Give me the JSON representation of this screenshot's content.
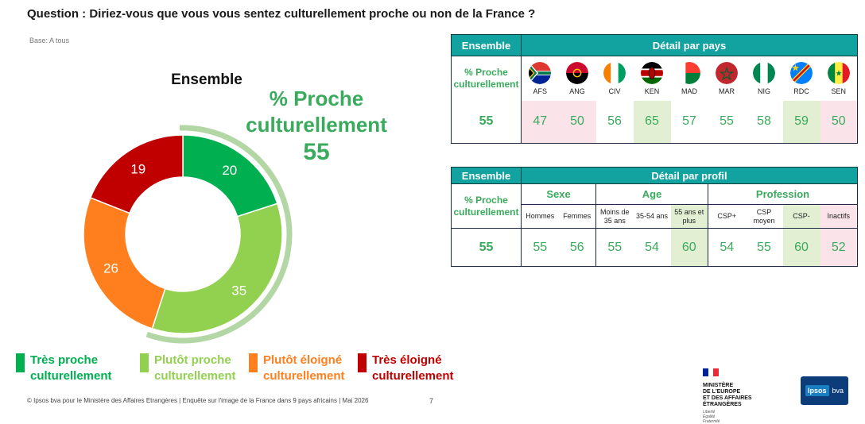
{
  "question": "Question : Diriez-vous que vous vous sentez culturellement proche ou non de la France ?",
  "base": "Base: A tous",
  "chart_data": {
    "type": "pie",
    "donut": true,
    "title": "Ensemble",
    "categories": [
      "Très proche culturellement",
      "Plutôt proche culturellement",
      "Plutôt éloigné culturellement",
      "Très éloigné culturellement"
    ],
    "values": [
      20,
      35,
      26,
      19
    ],
    "colors": [
      "#00b050",
      "#92d050",
      "#ff7f1e",
      "#c00000"
    ],
    "highlight_label": "% Proche culturellement",
    "highlight_value": "55"
  },
  "highlight": {
    "label": "% Proche culturellement",
    "value": "55"
  },
  "legend": [
    {
      "line1": "Très proche",
      "line2": "culturellement",
      "color": "#00b050"
    },
    {
      "line1": "Plutôt proche",
      "line2": "culturellement",
      "color": "#92d050"
    },
    {
      "line1": "Plutôt éloigné",
      "line2": "culturellement",
      "color": "#ff7f1e"
    },
    {
      "line1": "Très éloigné",
      "line2": "culturellement",
      "color": "#c00000"
    }
  ],
  "table_pays": {
    "ensemble_header": "Ensemble",
    "detail_header": "Détail par pays",
    "row_label_1": "% Proche",
    "row_label_2": "culturellement",
    "ensemble_value": "55",
    "countries": [
      {
        "code": "AFS",
        "value": "47",
        "bg": "pink",
        "flag": "south-africa-flag-icon"
      },
      {
        "code": "ANG",
        "value": "50",
        "bg": "pink",
        "flag": "angola-flag-icon"
      },
      {
        "code": "CIV",
        "value": "56",
        "bg": "none",
        "flag": "cote-divoire-flag-icon"
      },
      {
        "code": "KEN",
        "value": "65",
        "bg": "green",
        "flag": "kenya-flag-icon"
      },
      {
        "code": "MAD",
        "value": "57",
        "bg": "none",
        "flag": "madagascar-flag-icon"
      },
      {
        "code": "MAR",
        "value": "55",
        "bg": "none",
        "flag": "morocco-flag-icon"
      },
      {
        "code": "NIG",
        "value": "58",
        "bg": "none",
        "flag": "nigeria-flag-icon"
      },
      {
        "code": "RDC",
        "value": "59",
        "bg": "green",
        "flag": "drc-flag-icon"
      },
      {
        "code": "SEN",
        "value": "50",
        "bg": "pink",
        "flag": "senegal-flag-icon"
      }
    ]
  },
  "table_profil": {
    "ensemble_header": "Ensemble",
    "detail_header": "Détail par profil",
    "row_label_1": "% Proche",
    "row_label_2": "culturellement",
    "ensemble_value": "55",
    "groups": {
      "sexe": "Sexe",
      "age": "Age",
      "profession": "Profession"
    },
    "cols": [
      {
        "l1": "Hommes",
        "l2": "",
        "value": "55",
        "bg": "none"
      },
      {
        "l1": "Femmes",
        "l2": "",
        "value": "56",
        "bg": "none"
      },
      {
        "l1": "Moins de",
        "l2": "35 ans",
        "value": "55",
        "bg": "none"
      },
      {
        "l1": "35-54 ans",
        "l2": "",
        "value": "54",
        "bg": "none"
      },
      {
        "l1": "55 ans et",
        "l2": "plus",
        "value": "60",
        "bg": "green"
      },
      {
        "l1": "CSP+",
        "l2": "",
        "value": "54",
        "bg": "none"
      },
      {
        "l1": "CSP",
        "l2": "moyen",
        "value": "55",
        "bg": "none"
      },
      {
        "l1": "CSP-",
        "l2": "",
        "value": "60",
        "bg": "green"
      },
      {
        "l1": "Inactifs",
        "l2": "",
        "value": "52",
        "bg": "pink"
      }
    ]
  },
  "footer": "© Ipsos bva pour le Ministère des Affaires Etrangères | Enquête sur l'image de la France dans 9 pays africains | Mai 2026",
  "page_number": "7",
  "ministry": {
    "lines": [
      "MINISTÈRE",
      "DE L'EUROPE",
      "ET DES AFFAIRES",
      "ÉTRANGÈRES"
    ],
    "motto": [
      "Liberté",
      "Égalité",
      "Fraternité"
    ]
  },
  "ipsos": {
    "brand": "Ipsos",
    "suffix": "bva"
  }
}
